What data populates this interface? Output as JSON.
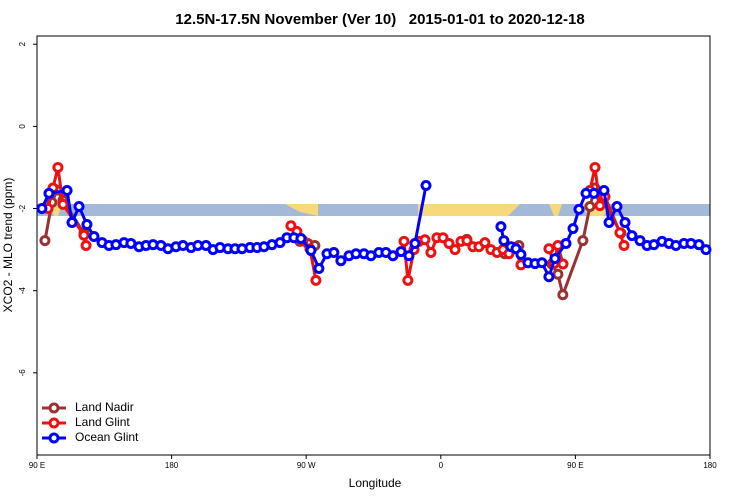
{
  "chart_data": {
    "type": "line",
    "title": "12.5N-17.5N November (Ver 10)   2015-01-01 to 2020-12-18",
    "x_label": "Longitude",
    "y_label": "XCO2 - MLO trend (ppm)",
    "xlim": [
      90,
      540
    ],
    "ylim": [
      -8,
      2.2
    ],
    "xticks": [
      {
        "value": 90,
        "label": "90 E"
      },
      {
        "value": 180,
        "label": "180"
      },
      {
        "value": 270,
        "label": "90 W"
      },
      {
        "value": 360,
        "label": "0"
      },
      {
        "value": 450,
        "label": "90 E"
      },
      {
        "value": 540,
        "label": "180"
      }
    ],
    "yticks": [
      2,
      0,
      -2,
      -4,
      -6
    ],
    "legend": "bottom-left",
    "series": [
      {
        "name": "Land Nadir",
        "color": "#993333",
        "x": [
          95.3,
          100.0,
          103.4,
          107.4,
          121.4,
          265.8,
          271.1,
          275.8,
          377.4,
          402.8,
          412.2,
          434.2,
          438.3,
          441.6,
          455.0,
          459.7,
          463.0,
          467.7,
          480.4
        ],
        "values": [
          -2.78,
          -1.85,
          -1.55,
          -1.8,
          -2.6,
          -2.8,
          -2.85,
          -2.9,
          -2.75,
          -3.1,
          -2.9,
          -3.35,
          -3.6,
          -4.1,
          -2.78,
          -1.95,
          -1.5,
          -1.75,
          -2.6
        ]
      },
      {
        "name": "Land Glint",
        "color": "#ee1111",
        "x": [
          97.4,
          100.7,
          104.0,
          107.4,
          121.4,
          122.8,
          259.8,
          263.8,
          267.8,
          272.5,
          276.5,
          335.4,
          338.0,
          342.1,
          345.4,
          349.4,
          353.4,
          357.4,
          361.5,
          365.5,
          369.5,
          373.5,
          377.5,
          381.5,
          385.5,
          389.5,
          393.5,
          397.6,
          401.6,
          405.6,
          409.6,
          413.6,
          432.3,
          435.7,
          438.3,
          441.7,
          459.7,
          463.1,
          466.4,
          469.8,
          479.8,
          482.5
        ],
        "values": [
          -2.0,
          -1.5,
          -1.0,
          -1.9,
          -2.65,
          -2.9,
          -2.42,
          -2.56,
          -2.78,
          -2.98,
          -3.75,
          -2.8,
          -3.75,
          -3.0,
          -2.8,
          -2.76,
          -3.07,
          -2.71,
          -2.71,
          -2.85,
          -3.0,
          -2.8,
          -2.78,
          -2.93,
          -2.93,
          -2.83,
          -3.0,
          -3.07,
          -3.0,
          -3.1,
          -2.95,
          -3.37,
          -2.98,
          -3.34,
          -2.9,
          -3.35,
          -1.56,
          -1.0,
          -1.93,
          -1.71,
          -2.59,
          -2.9
        ]
      },
      {
        "name": "Ocean Glint",
        "color": "#0000ff",
        "x": [
          93.3,
          98.0,
          110.1,
          113.4,
          118.1,
          123.4,
          128.1,
          133.5,
          138.1,
          142.8,
          148.2,
          152.8,
          158.2,
          162.9,
          167.6,
          172.9,
          177.6,
          182.9,
          187.6,
          193.0,
          197.6,
          203.0,
          207.7,
          212.4,
          217.7,
          222.4,
          227.1,
          232.4,
          237.1,
          241.8,
          247.1,
          252.5,
          257.1,
          261.8,
          266.5,
          273.2,
          278.5,
          283.9,
          288.5,
          293.2,
          298.6,
          303.3,
          308.6,
          313.3,
          318.6,
          323.3,
          328.0,
          333.4,
          338.7,
          342.7,
          350.1,
          400.2,
          402.2,
          406.9,
          410.3,
          413.6,
          418.3,
          423.0,
          427.6,
          432.3,
          436.3,
          443.7,
          448.4,
          452.4,
          457.1,
          462.4,
          469.1,
          472.5,
          477.8,
          483.2,
          487.8,
          493.2,
          497.9,
          502.5,
          507.9,
          512.6,
          517.2,
          522.6,
          527.3,
          532.6,
          537.3
        ],
        "values": [
          -2.0,
          -1.63,
          -1.56,
          -2.34,
          -1.95,
          -2.39,
          -2.68,
          -2.83,
          -2.9,
          -2.88,
          -2.83,
          -2.85,
          -2.93,
          -2.9,
          -2.88,
          -2.9,
          -2.98,
          -2.93,
          -2.9,
          -2.95,
          -2.9,
          -2.9,
          -3.0,
          -2.95,
          -2.98,
          -2.98,
          -2.98,
          -2.95,
          -2.95,
          -2.93,
          -2.88,
          -2.83,
          -2.71,
          -2.71,
          -2.73,
          -3.02,
          -3.46,
          -3.1,
          -3.07,
          -3.27,
          -3.15,
          -3.1,
          -3.1,
          -3.15,
          -3.07,
          -3.07,
          -3.15,
          -3.05,
          -3.15,
          -2.85,
          -1.44,
          -2.44,
          -2.78,
          -2.93,
          -2.98,
          -3.12,
          -3.32,
          -3.34,
          -3.32,
          -3.66,
          -3.22,
          -2.85,
          -2.49,
          -2.02,
          -1.63,
          -1.63,
          -1.56,
          -2.34,
          -1.95,
          -2.34,
          -2.66,
          -2.78,
          -2.9,
          -2.88,
          -2.8,
          -2.85,
          -2.9,
          -2.85,
          -2.85,
          -2.88,
          -3.0
        ]
      }
    ]
  }
}
